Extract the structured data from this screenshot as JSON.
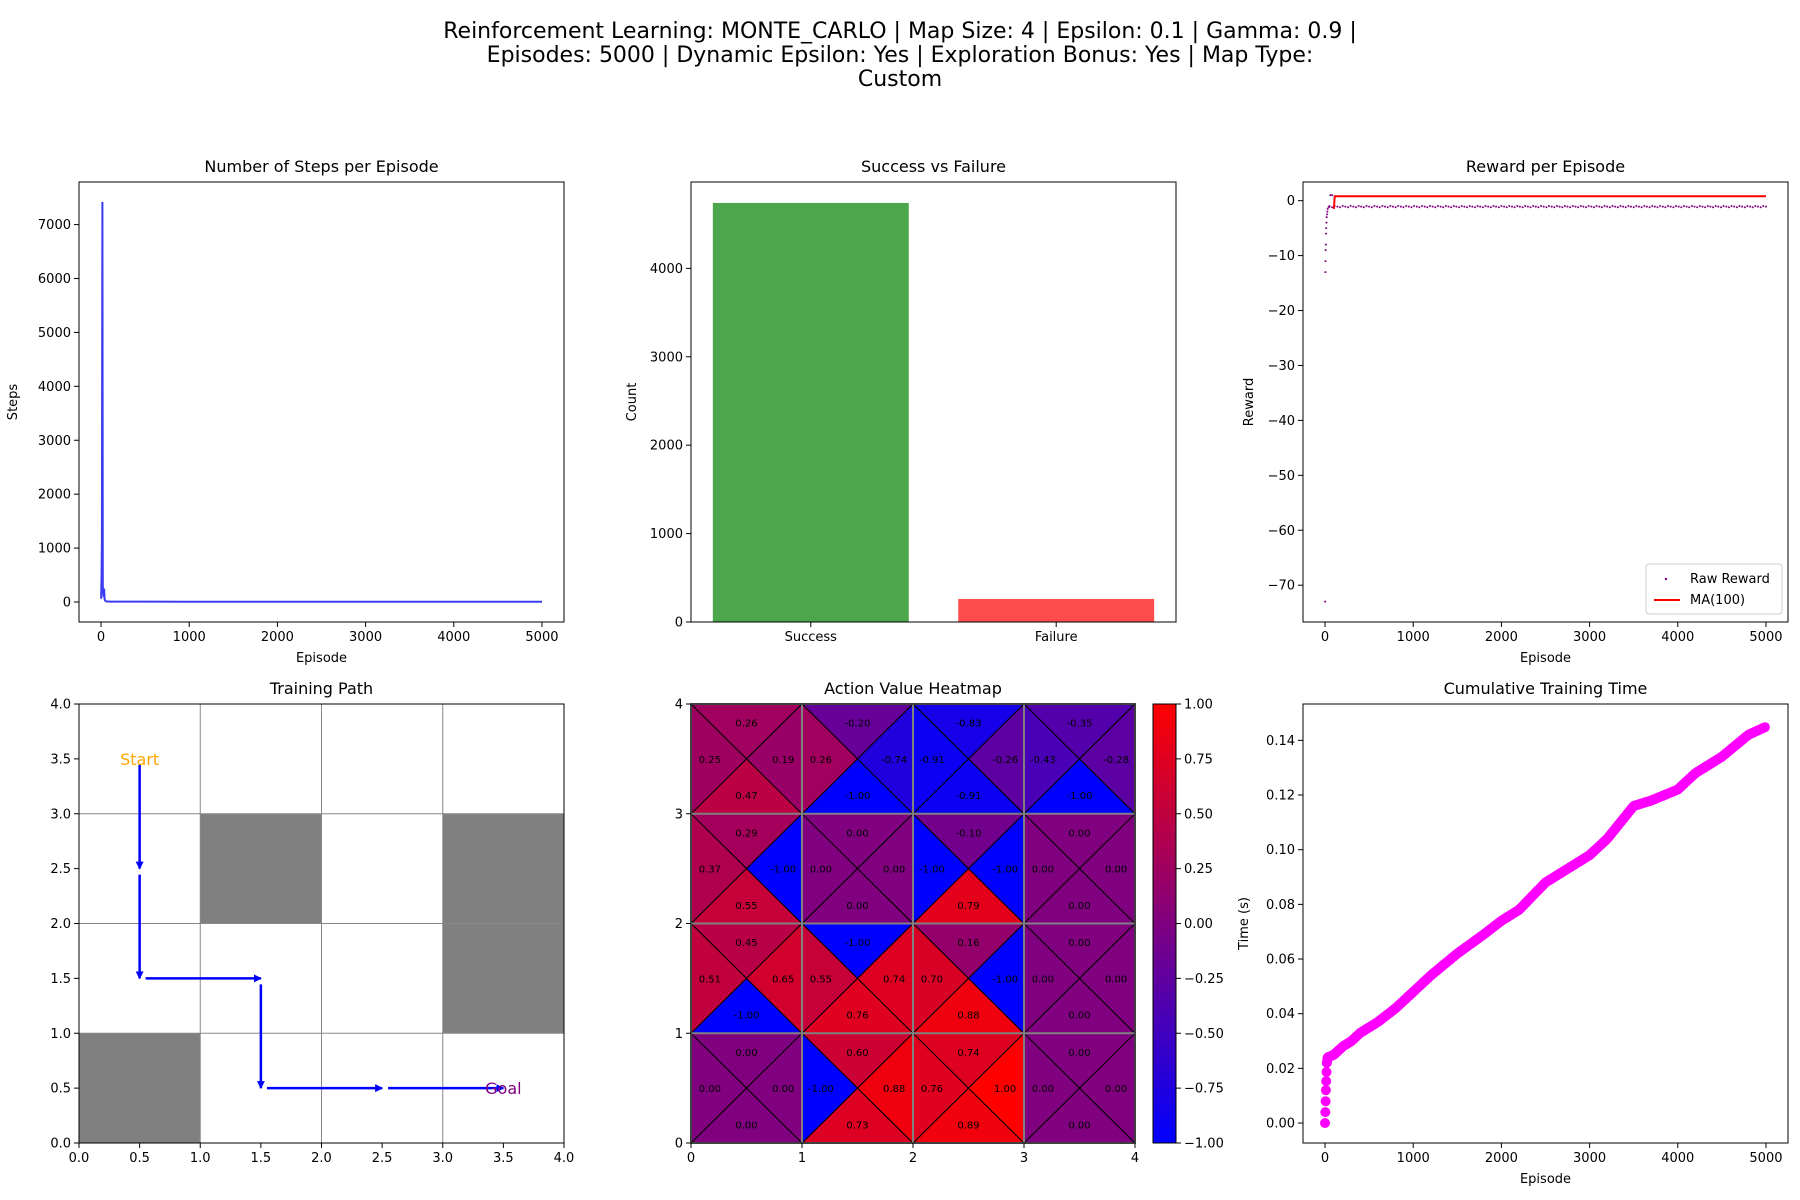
{
  "suptitle": {
    "line1": "Reinforcement Learning: MONTE_CARLO | Map Size: 4 | Epsilon: 0.1 | Gamma: 0.9 |",
    "line2": "Episodes: 5000 | Dynamic Epsilon: Yes | Exploration Bonus: Yes | Map Type:",
    "line3": "Custom"
  },
  "colors": {
    "steps_line": "#3b3bf0",
    "success_bar": "#4ca64c",
    "failure_bar": "#ff4d4d",
    "raw_reward": "#800080",
    "ma_line": "#ff0000",
    "path_arrow": "#0000ff",
    "start_label": "#ffa500",
    "goal_label": "#800080",
    "wall": "#808080",
    "cumulative": "#ff00ff"
  },
  "chart_data": [
    {
      "id": "steps",
      "type": "line",
      "title": "Number of Steps per Episode",
      "xlabel": "Episode",
      "ylabel": "Steps",
      "xlim": [
        -250,
        5250
      ],
      "ylim": [
        -371,
        7790
      ],
      "xticks": [
        0,
        1000,
        2000,
        3000,
        4000,
        5000
      ],
      "yticks": [
        0,
        1000,
        2000,
        3000,
        4000,
        5000,
        6000,
        7000
      ],
      "x": [
        1,
        5,
        10,
        15,
        20,
        25,
        30,
        35,
        40,
        45,
        50,
        60,
        80,
        100,
        200,
        500,
        1000,
        2000,
        3000,
        4000,
        5000
      ],
      "y": [
        60,
        400,
        1100,
        7420,
        300,
        150,
        90,
        250,
        60,
        30,
        20,
        12,
        9,
        8,
        7,
        7,
        6,
        6,
        6,
        6,
        6
      ]
    },
    {
      "id": "success",
      "type": "bar",
      "title": "Success vs Failure",
      "ylabel": "Count",
      "categories": [
        "Success",
        "Failure"
      ],
      "values": [
        4740,
        260
      ],
      "ylim": [
        0,
        4977
      ],
      "yticks": [
        0,
        1000,
        2000,
        3000,
        4000
      ]
    },
    {
      "id": "reward",
      "type": "scatter",
      "title": "Reward per Episode",
      "xlabel": "Episode",
      "ylabel": "Reward",
      "xlim": [
        -250,
        5250
      ],
      "ylim": [
        -76.7,
        3.4
      ],
      "xticks": [
        0,
        1000,
        2000,
        3000,
        4000,
        5000
      ],
      "yticks": [
        0,
        -10,
        -20,
        -30,
        -40,
        -50,
        -60,
        -70
      ],
      "legend": [
        "Raw Reward",
        "MA(100)"
      ],
      "raw_points": [
        {
          "x": 1,
          "y": -73
        },
        {
          "x": 3,
          "y": -13
        },
        {
          "x": 5,
          "y": -11
        },
        {
          "x": 7,
          "y": -9
        },
        {
          "x": 9,
          "y": -8
        },
        {
          "x": 11,
          "y": -6
        },
        {
          "x": 13,
          "y": -5
        },
        {
          "x": 15,
          "y": -4
        },
        {
          "x": 18,
          "y": -3
        },
        {
          "x": 22,
          "y": -2.5
        },
        {
          "x": 26,
          "y": -2
        },
        {
          "x": 30,
          "y": -1.5
        },
        {
          "x": 40,
          "y": -1.2
        },
        {
          "x": 50,
          "y": -1
        },
        {
          "x": 60,
          "y": 1
        },
        {
          "x": 80,
          "y": 1
        }
      ],
      "raw_band": {
        "x_start": 50,
        "x_end": 5000,
        "y": -1
      },
      "ma": {
        "x": [
          100,
          110,
          150,
          5000
        ],
        "y": [
          -1.5,
          0.8,
          0.8,
          0.8
        ]
      }
    },
    {
      "id": "path",
      "type": "grid",
      "title": "Training Path",
      "xlim": [
        0,
        4
      ],
      "ylim": [
        0,
        4
      ],
      "ticks": [
        0.0,
        0.5,
        1.0,
        1.5,
        2.0,
        2.5,
        3.0,
        3.5,
        4.0
      ],
      "walls": [
        [
          1,
          2
        ],
        [
          3,
          2
        ],
        [
          3,
          1
        ],
        [
          0,
          0
        ]
      ],
      "arrows": [
        {
          "from": [
            0.5,
            3.5
          ],
          "to": [
            0.5,
            2.5
          ]
        },
        {
          "from": [
            0.5,
            2.5
          ],
          "to": [
            0.5,
            1.5
          ]
        },
        {
          "from": [
            0.5,
            1.5
          ],
          "to": [
            1.5,
            1.5
          ]
        },
        {
          "from": [
            1.5,
            1.5
          ],
          "to": [
            1.5,
            0.5
          ]
        },
        {
          "from": [
            1.5,
            0.5
          ],
          "to": [
            2.5,
            0.5
          ]
        },
        {
          "from": [
            2.5,
            0.5
          ],
          "to": [
            3.5,
            0.5
          ]
        }
      ],
      "start_label": "Start",
      "goal_label": "Goal",
      "start_pos": [
        0.5,
        3.5
      ],
      "goal_pos": [
        3.5,
        0.5
      ]
    },
    {
      "id": "heatmap",
      "type": "heatmap",
      "title": "Action Value Heatmap",
      "xticks": [
        0,
        1,
        2,
        3,
        4
      ],
      "yticks": [
        0,
        1,
        2,
        3,
        4
      ],
      "colorbar_ticks": [
        "1.00",
        "0.75",
        "0.50",
        "0.25",
        "0.00",
        "−0.25",
        "−0.50",
        "−0.75",
        "−1.00"
      ],
      "vrange": [
        -1,
        1
      ],
      "cells": [
        {
          "col": 0,
          "row": 3,
          "up": "0.26",
          "left": "0.25",
          "right": "0.19",
          "down": "0.47"
        },
        {
          "col": 1,
          "row": 3,
          "up": "-0.20",
          "left": "0.26",
          "right": "-0.74",
          "down": "-1.00"
        },
        {
          "col": 2,
          "row": 3,
          "up": "-0.83",
          "left": "-0.91",
          "right": "-0.26",
          "down": "-0.91"
        },
        {
          "col": 3,
          "row": 3,
          "up": "-0.35",
          "left": "-0.43",
          "right": "-0.28",
          "down": "-1.00"
        },
        {
          "col": 0,
          "row": 2,
          "up": "0.29",
          "left": "0.37",
          "right": "-1.00",
          "down": "0.55"
        },
        {
          "col": 1,
          "row": 2,
          "up": "0.00",
          "left": "0.00",
          "right": "0.00",
          "down": "0.00"
        },
        {
          "col": 2,
          "row": 2,
          "up": "-0.10",
          "left": "-1.00",
          "right": "-1.00",
          "down": "0.79"
        },
        {
          "col": 3,
          "row": 2,
          "up": "0.00",
          "left": "0.00",
          "right": "0.00",
          "down": "0.00"
        },
        {
          "col": 0,
          "row": 1,
          "up": "0.45",
          "left": "0.51",
          "right": "0.65",
          "down": "-1.00"
        },
        {
          "col": 1,
          "row": 1,
          "up": "-1.00",
          "left": "0.55",
          "right": "0.74",
          "down": "0.76"
        },
        {
          "col": 2,
          "row": 1,
          "up": "0.16",
          "left": "0.70",
          "right": "-1.00",
          "down": "0.88"
        },
        {
          "col": 3,
          "row": 1,
          "up": "0.00",
          "left": "0.00",
          "right": "0.00",
          "down": "0.00"
        },
        {
          "col": 0,
          "row": 0,
          "up": "0.00",
          "left": "0.00",
          "right": "0.00",
          "down": "0.00"
        },
        {
          "col": 1,
          "row": 0,
          "up": "0.60",
          "left": "-1.00",
          "right": "0.88",
          "down": "0.73"
        },
        {
          "col": 2,
          "row": 0,
          "up": "0.74",
          "left": "0.76",
          "right": "1.00",
          "down": "0.89"
        },
        {
          "col": 3,
          "row": 0,
          "up": "0.00",
          "left": "0.00",
          "right": "0.00",
          "down": "0.00"
        }
      ]
    },
    {
      "id": "time",
      "type": "scatter",
      "title": "Cumulative Training Time",
      "xlabel": "Episode",
      "ylabel": "Time (s)",
      "xlim": [
        -250,
        5250
      ],
      "ylim": [
        -0.0073,
        0.1533
      ],
      "xticks": [
        0,
        1000,
        2000,
        3000,
        4000,
        5000
      ],
      "yticks": [
        0.0,
        0.02,
        0.04,
        0.06,
        0.08,
        0.1,
        0.12,
        0.14
      ],
      "ytick_labels": [
        "0.00",
        "0.02",
        "0.04",
        "0.06",
        "0.08",
        "0.10",
        "0.12",
        "0.14"
      ],
      "x": [
        0,
        10,
        20,
        30,
        100,
        200,
        300,
        400,
        600,
        800,
        1000,
        1200,
        1500,
        1800,
        2000,
        2200,
        2500,
        2800,
        3000,
        3200,
        3400,
        3500,
        3700,
        4000,
        4200,
        4500,
        4800,
        5000
      ],
      "y": [
        0.0,
        0.012,
        0.022,
        0.024,
        0.025,
        0.028,
        0.03,
        0.033,
        0.037,
        0.042,
        0.048,
        0.054,
        0.062,
        0.069,
        0.074,
        0.078,
        0.088,
        0.094,
        0.098,
        0.104,
        0.112,
        0.116,
        0.118,
        0.122,
        0.128,
        0.134,
        0.142,
        0.145
      ]
    }
  ]
}
